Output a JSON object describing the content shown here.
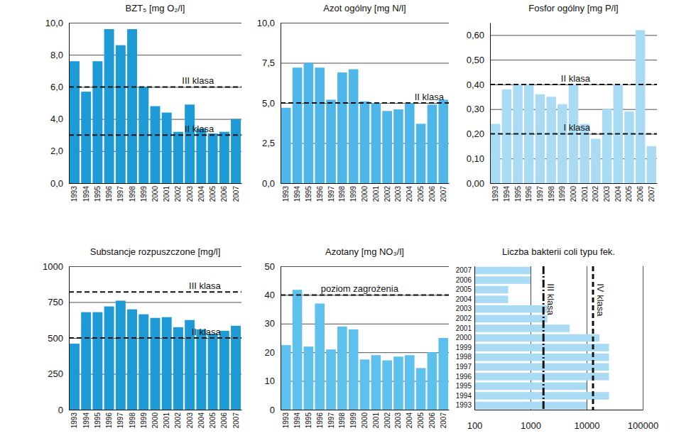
{
  "chart_data": [
    {
      "type": "bar",
      "title": "BZT₅ [mg O₂/l]",
      "categories": [
        "1993",
        "1994",
        "1995",
        "1996",
        "1997",
        "1998",
        "1999",
        "2000",
        "2001",
        "2002",
        "2003",
        "2004",
        "2005",
        "2006",
        "2007"
      ],
      "values": [
        7.6,
        5.7,
        7.6,
        9.6,
        8.6,
        9.6,
        6.0,
        4.8,
        4.4,
        3.2,
        4.9,
        3.4,
        3.1,
        3.2,
        4.0
      ],
      "color": "#1e9ad6",
      "ylim": [
        0,
        10
      ],
      "yticks": [
        {
          "value": 0,
          "label": "0,0"
        },
        {
          "value": 2,
          "label": "2,0"
        },
        {
          "value": 4,
          "label": "4,0"
        },
        {
          "value": 6,
          "label": "6,0"
        },
        {
          "value": 8,
          "label": "8,0"
        },
        {
          "value": 10,
          "label": "10,0"
        }
      ],
      "grid": true,
      "annotations": [
        {
          "label": "III klasa",
          "value": 6.0,
          "line_style": "dashed"
        },
        {
          "label": "II klasa",
          "value": 3.0,
          "line_style": "dashed"
        }
      ]
    },
    {
      "type": "bar",
      "title": "Azot ogólny [mg N/l]",
      "categories": [
        "1993",
        "1994",
        "1995",
        "1996",
        "1997",
        "1998",
        "1999",
        "2000",
        "2001",
        "2002",
        "2003",
        "2004",
        "2005",
        "2006",
        "2007"
      ],
      "values": [
        4.7,
        7.2,
        7.5,
        7.2,
        5.2,
        6.9,
        7.1,
        5.1,
        5.0,
        4.5,
        4.6,
        5.0,
        3.7,
        4.9,
        5.2
      ],
      "color": "#4fb6e9",
      "ylim": [
        0,
        10
      ],
      "yticks": [
        {
          "value": 0,
          "label": "0,0"
        },
        {
          "value": 2.5,
          "label": "2,5"
        },
        {
          "value": 5,
          "label": "5,0"
        },
        {
          "value": 7.5,
          "label": "7,5"
        },
        {
          "value": 10,
          "label": "10,0"
        }
      ],
      "grid": true,
      "annotations": [
        {
          "label": "II klasa",
          "value": 5.0,
          "line_style": "dashed"
        }
      ]
    },
    {
      "type": "bar",
      "title": "Fosfor ogólny [mg P/l]",
      "categories": [
        "1993",
        "1994",
        "1995",
        "1996",
        "1997",
        "1998",
        "1999",
        "2000",
        "2001",
        "2002",
        "2003",
        "2004",
        "2005",
        "2006",
        "2007"
      ],
      "values": [
        0.24,
        0.38,
        0.4,
        0.4,
        0.36,
        0.35,
        0.32,
        0.4,
        0.24,
        0.18,
        0.3,
        0.4,
        0.29,
        0.62,
        0.15
      ],
      "color": "#a9dcf4",
      "ylim": [
        0,
        0.65
      ],
      "yticks": [
        {
          "value": 0,
          "label": "0,00"
        },
        {
          "value": 0.1,
          "label": "0,10"
        },
        {
          "value": 0.2,
          "label": "0,20"
        },
        {
          "value": 0.3,
          "label": "0,30"
        },
        {
          "value": 0.4,
          "label": "0,40"
        },
        {
          "value": 0.5,
          "label": "0,50"
        },
        {
          "value": 0.6,
          "label": "0,60"
        }
      ],
      "grid": true,
      "annotations": [
        {
          "label": "II klasa",
          "value": 0.4,
          "line_style": "dashed"
        },
        {
          "label": "I klasa",
          "value": 0.2,
          "line_style": "dashed"
        }
      ]
    },
    {
      "type": "bar",
      "title": "Substancje rozpuszczone [mg/l]",
      "categories": [
        "1993",
        "1994",
        "1995",
        "1996",
        "1997",
        "1998",
        "1999",
        "2000",
        "2001",
        "2002",
        "2003",
        "2004",
        "2005",
        "2006",
        "2007"
      ],
      "values": [
        460,
        680,
        680,
        720,
        760,
        700,
        665,
        640,
        645,
        575,
        625,
        560,
        530,
        550,
        585
      ],
      "color": "#1e9ad6",
      "ylim": [
        0,
        1000
      ],
      "yticks": [
        0,
        250,
        500,
        750,
        1000
      ],
      "grid": true,
      "annotations": [
        {
          "label": "III klasa",
          "value": 820,
          "line_style": "dashed"
        },
        {
          "label": "II klasa",
          "value": 500,
          "line_style": "dashed"
        }
      ]
    },
    {
      "type": "bar",
      "title": "Azotany [mg NO₃/l]",
      "categories": [
        "1993",
        "1994",
        "1995",
        "1996",
        "1997",
        "1998",
        "1999",
        "2000",
        "2001",
        "2002",
        "2003",
        "2004",
        "2005",
        "2006",
        "2007"
      ],
      "values": [
        22.5,
        41.8,
        22,
        37,
        21,
        29,
        28,
        17.5,
        19,
        17.2,
        18.5,
        19,
        14.5,
        20,
        25
      ],
      "color": "#5ec0ec",
      "ylim": [
        0,
        50
      ],
      "yticks": [
        0,
        10,
        20,
        30,
        40,
        50
      ],
      "grid": true,
      "annotations": [
        {
          "label": "poziom zagrożenia",
          "value": 40,
          "line_style": "dashed"
        }
      ]
    },
    {
      "type": "bar",
      "title": "Liczba bakterii coli typu fek.",
      "orientation": "horizontal",
      "log": "x",
      "categories": [
        "1993",
        "1994",
        "1995",
        "1996",
        "1997",
        "1998",
        "1999",
        "2000",
        "2001",
        "2002",
        "2003",
        "2004",
        "2005",
        "2006",
        "2007"
      ],
      "values": [
        10000,
        25000,
        10000,
        25000,
        25000,
        25000,
        25000,
        17000,
        5000,
        2000,
        2000,
        400,
        400,
        1000,
        1000
      ],
      "color": "#a9dcf4",
      "xlim": [
        100,
        100000
      ],
      "xticks": [
        100,
        1000,
        10000,
        100000
      ],
      "grid": true,
      "annotations": [
        {
          "label": "III klasa",
          "value": 1700,
          "line_style": "dashdot"
        },
        {
          "label": "IV klasa",
          "value": 13000,
          "line_style": "dashed"
        }
      ]
    }
  ]
}
